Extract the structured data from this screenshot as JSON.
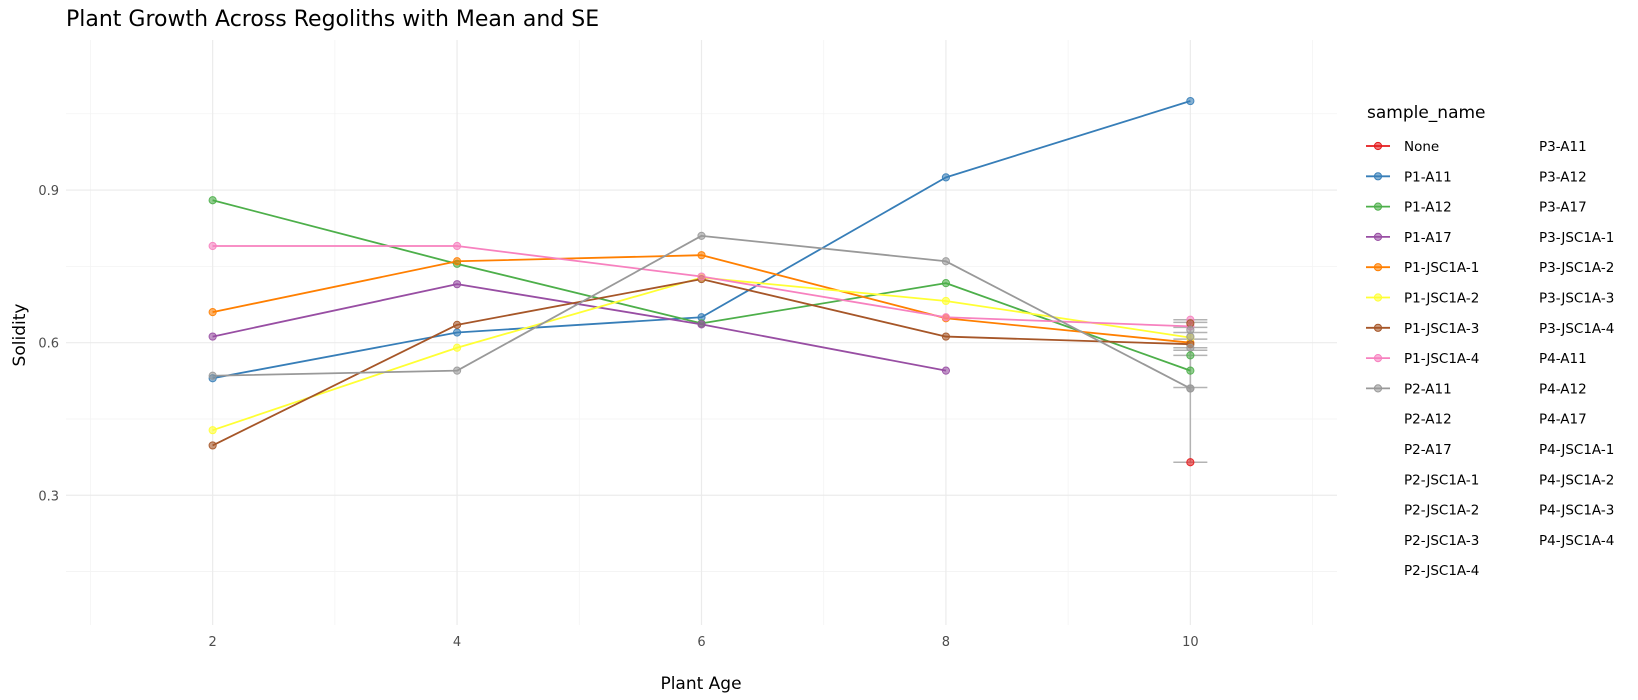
{
  "chart_data": {
    "type": "line",
    "title": "Plant Growth Across Regoliths with Mean and SE",
    "xlabel": "Plant Age",
    "ylabel": "Solidity",
    "xlim": [
      0.8,
      11.2
    ],
    "ylim": [
      0.045,
      1.195
    ],
    "x_ticks": [
      2,
      4,
      6,
      8,
      10
    ],
    "x_tick_labels": [
      "2",
      "4",
      "6",
      "8",
      "10"
    ],
    "y_ticks": [
      0.3,
      0.6,
      0.9
    ],
    "y_tick_labels": [
      "0.3",
      "0.6",
      "0.9"
    ],
    "grid": true,
    "legend": {
      "title": "sample_name",
      "placement": "right",
      "columns": 2,
      "entries": [
        "None",
        "P1-A11",
        "P1-A12",
        "P1-A17",
        "P1-JSC1A-1",
        "P1-JSC1A-2",
        "P1-JSC1A-3",
        "P1-JSC1A-4",
        "P2-A11",
        "P2-A12",
        "P2-A17",
        "P2-JSC1A-1",
        "P2-JSC1A-2",
        "P2-JSC1A-3",
        "P2-JSC1A-4",
        "P3-A11",
        "P3-A12",
        "P3-A17",
        "P3-JSC1A-1",
        "P3-JSC1A-2",
        "P3-JSC1A-3",
        "P3-JSC1A-4",
        "P4-A11",
        "P4-A12",
        "P4-A17",
        "P4-JSC1A-1",
        "P4-JSC1A-2",
        "P4-JSC1A-3",
        "P4-JSC1A-4"
      ]
    },
    "series": [
      {
        "name": "None",
        "color": "#E41A1C",
        "x": [
          10
        ],
        "y": [
          0.365
        ]
      },
      {
        "name": "P1-A11",
        "color": "#377EB8",
        "x": [
          2,
          4,
          6,
          8,
          10
        ],
        "y": [
          0.53,
          0.62,
          0.65,
          0.925,
          1.075
        ]
      },
      {
        "name": "P1-A12",
        "color": "#4DAF4A",
        "x": [
          2,
          4,
          6,
          8,
          10
        ],
        "y": [
          0.88,
          0.755,
          0.638,
          0.717,
          0.545
        ]
      },
      {
        "name": "P1-A17",
        "color": "#984EA3",
        "x": [
          2,
          4,
          6,
          8
        ],
        "y": [
          0.612,
          0.715,
          0.636,
          0.545
        ]
      },
      {
        "name": "P1-JSC1A-1",
        "color": "#FF7F00",
        "x": [
          2,
          4,
          6,
          8,
          10
        ],
        "y": [
          0.66,
          0.76,
          0.772,
          0.648,
          0.6
        ]
      },
      {
        "name": "P1-JSC1A-2",
        "color": "#FFFF33",
        "x": [
          2,
          4,
          6,
          8,
          10
        ],
        "y": [
          0.428,
          0.59,
          0.728,
          0.682,
          0.61
        ]
      },
      {
        "name": "P1-JSC1A-3",
        "color": "#A65628",
        "x": [
          2,
          4,
          6,
          8,
          10
        ],
        "y": [
          0.398,
          0.635,
          0.725,
          0.612,
          0.597
        ]
      },
      {
        "name": "P1-JSC1A-4",
        "color": "#F781BF",
        "x": [
          2,
          4,
          6,
          8,
          10
        ],
        "y": [
          0.79,
          0.79,
          0.73,
          0.65,
          0.632
        ]
      },
      {
        "name": "P2-A11",
        "color": "#999999",
        "x": [
          2,
          4,
          6,
          8,
          10
        ],
        "y": [
          0.535,
          0.545,
          0.81,
          0.76,
          0.51
        ]
      }
    ],
    "extra_points": [
      {
        "x": 10,
        "y": 0.645,
        "color": "#F781BF"
      },
      {
        "x": 10,
        "y": 0.638,
        "color": "#A65628"
      },
      {
        "x": 10,
        "y": 0.625,
        "color": "#999999"
      },
      {
        "x": 10,
        "y": 0.612,
        "color": "#999999"
      },
      {
        "x": 10,
        "y": 0.59,
        "color": "#999999"
      },
      {
        "x": 10,
        "y": 0.575,
        "color": "#4DAF4A"
      },
      {
        "x": 10,
        "y": 0.51,
        "color": "#999999"
      }
    ],
    "error_bars": [
      {
        "x": 10,
        "ymin": 0.365,
        "ymax": 0.645
      },
      {
        "x": 10,
        "ymin": 0.512,
        "ymax": 0.64
      },
      {
        "x": 10,
        "ymin": 0.575,
        "ymax": 0.63
      },
      {
        "x": 10,
        "ymin": 0.585,
        "ymax": 0.62
      },
      {
        "x": 10,
        "ymin": 0.59,
        "ymax": 0.607
      }
    ]
  }
}
